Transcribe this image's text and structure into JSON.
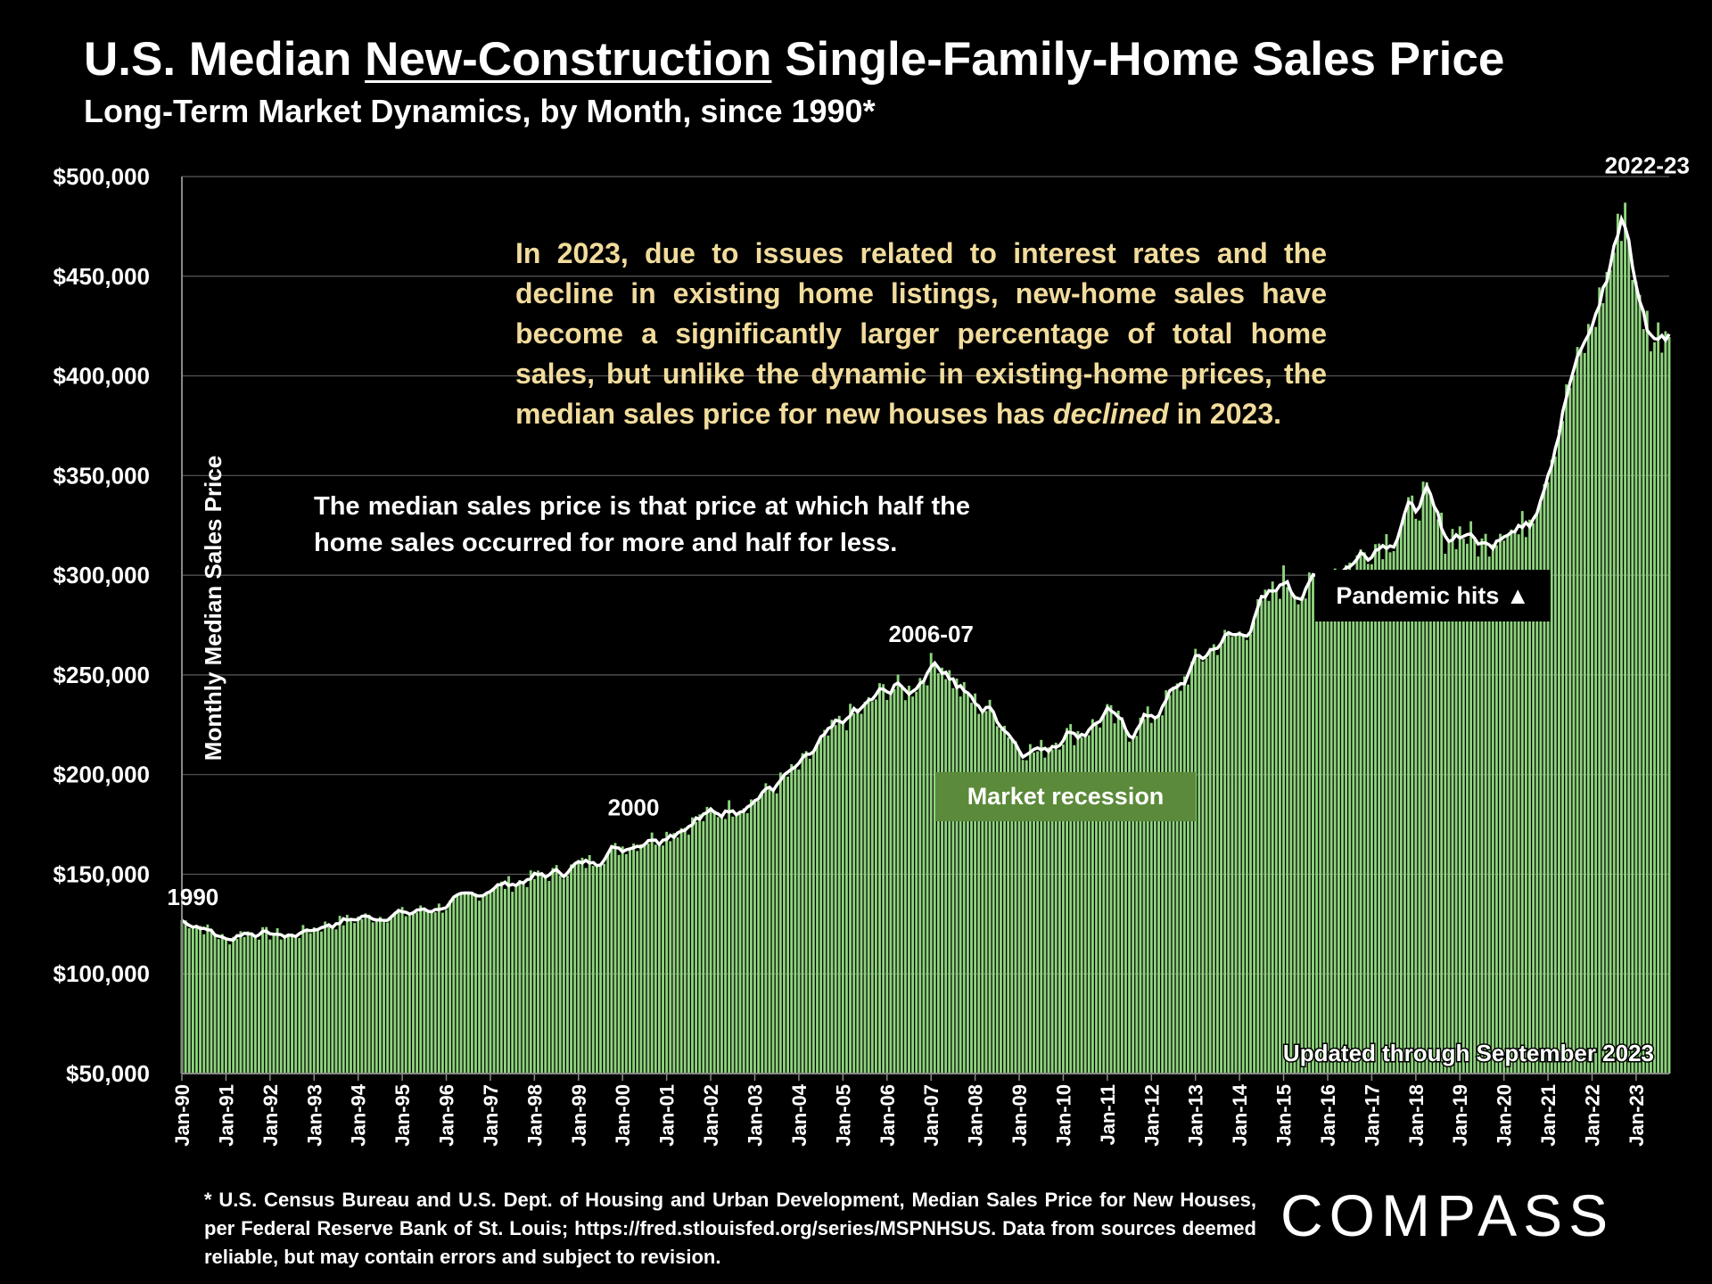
{
  "title": {
    "part1": "U.S. Median ",
    "part2": "New-Construction",
    "part3": " Single-Family-Home Sales Price"
  },
  "subtitle": "Long-Term Market Dynamics, by Month, since 1990*",
  "annotations": {
    "note": [
      "In 2023, due to issues related to interest rates and the decline in existing home listings, new-home sales have become a significantly larger percentage of total home sales, but unlike the dynamic in existing-home prices, the median sales price for new houses has ",
      "declined",
      " in 2023."
    ],
    "definition": "The median sales price is that price at which half the home sales occurred for more and half for less.",
    "recession": "Market recession",
    "pandemic": "Pandemic hits ▲",
    "updated": "Updated through September 2023"
  },
  "footnote": "* U.S. Census Bureau and U.S. Dept. of Housing and Urban Development, Median Sales Price for New Houses, per Federal Reserve Bank of St. Louis; https://fred.stlouisfed.org/series/MSPNHSUS. Data from sources deemed reliable, but may contain errors and subject to revision.",
  "logo": "COMPASS",
  "chart_data": {
    "type": "bar",
    "ylabel": "Monthly Median Sales Price",
    "xlabel": "",
    "ylim": [
      50000,
      500000
    ],
    "y_ticks": [
      "$50,000",
      "$100,000",
      "$150,000",
      "$200,000",
      "$250,000",
      "$300,000",
      "$350,000",
      "$400,000",
      "$450,000",
      "$500,000"
    ],
    "x_ticks": [
      "Jan-90",
      "Jan-91",
      "Jan-92",
      "Jan-93",
      "Jan-94",
      "Jan-95",
      "Jan-96",
      "Jan-97",
      "Jan-98",
      "Jan-99",
      "Jan-00",
      "Jan-01",
      "Jan-02",
      "Jan-03",
      "Jan-04",
      "Jan-05",
      "Jan-06",
      "Jan-07",
      "Jan-08",
      "Jan-09",
      "Jan-10",
      "Jan-11",
      "Jan-12",
      "Jan-13",
      "Jan-14",
      "Jan-15",
      "Jan-16",
      "Jan-17",
      "Jan-18",
      "Jan-19",
      "Jan-20",
      "Jan-21",
      "Jan-22",
      "Jan-23"
    ],
    "grid": true,
    "bar_color": "#8fd47e",
    "line_color": "#ffffff",
    "key_points": [
      {
        "x": "1990-01",
        "y": 127000
      },
      {
        "x": "1990-06",
        "y": 124000
      },
      {
        "x": "1991-01",
        "y": 117000
      },
      {
        "x": "1991-06",
        "y": 121000
      },
      {
        "x": "1992-01",
        "y": 120000
      },
      {
        "x": "1992-07",
        "y": 119000
      },
      {
        "x": "1993-01",
        "y": 123000
      },
      {
        "x": "1994-01",
        "y": 128000
      },
      {
        "x": "1995-01",
        "y": 130000
      },
      {
        "x": "1996-01",
        "y": 134000
      },
      {
        "x": "1997-01",
        "y": 143000
      },
      {
        "x": "1998-01",
        "y": 148000
      },
      {
        "x": "1999-01",
        "y": 154000
      },
      {
        "x": "2000-01",
        "y": 164000
      },
      {
        "x": "2001-01",
        "y": 170000
      },
      {
        "x": "2002-01",
        "y": 180000
      },
      {
        "x": "2003-01",
        "y": 187000
      },
      {
        "x": "2004-01",
        "y": 203000
      },
      {
        "x": "2004-07",
        "y": 215000
      },
      {
        "x": "2005-01",
        "y": 227000
      },
      {
        "x": "2005-07",
        "y": 233000
      },
      {
        "x": "2006-01",
        "y": 244000
      },
      {
        "x": "2006-07",
        "y": 242000
      },
      {
        "x": "2007-03",
        "y": 258000
      },
      {
        "x": "2007-09",
        "y": 242000
      },
      {
        "x": "2008-01",
        "y": 236000
      },
      {
        "x": "2008-07",
        "y": 230000
      },
      {
        "x": "2009-01",
        "y": 214000
      },
      {
        "x": "2009-06",
        "y": 211000
      },
      {
        "x": "2010-01",
        "y": 220000
      },
      {
        "x": "2010-07",
        "y": 222000
      },
      {
        "x": "2011-01",
        "y": 230000
      },
      {
        "x": "2011-07",
        "y": 222000
      },
      {
        "x": "2012-01",
        "y": 229000
      },
      {
        "x": "2012-07",
        "y": 240000
      },
      {
        "x": "2013-01",
        "y": 256000
      },
      {
        "x": "2013-07",
        "y": 266000
      },
      {
        "x": "2014-01",
        "y": 270000
      },
      {
        "x": "2014-07",
        "y": 283000
      },
      {
        "x": "2015-01",
        "y": 298000
      },
      {
        "x": "2015-07",
        "y": 291000
      },
      {
        "x": "2016-01",
        "y": 303000
      },
      {
        "x": "2016-07",
        "y": 305000
      },
      {
        "x": "2017-01",
        "y": 315000
      },
      {
        "x": "2017-07",
        "y": 320000
      },
      {
        "x": "2018-03",
        "y": 340000
      },
      {
        "x": "2018-09",
        "y": 320000
      },
      {
        "x": "2019-01",
        "y": 322000
      },
      {
        "x": "2019-07",
        "y": 315000
      },
      {
        "x": "2020-01",
        "y": 326000
      },
      {
        "x": "2020-05",
        "y": 320000
      },
      {
        "x": "2020-10",
        "y": 338000
      },
      {
        "x": "2021-01",
        "y": 355000
      },
      {
        "x": "2021-07",
        "y": 395000
      },
      {
        "x": "2022-01",
        "y": 425000
      },
      {
        "x": "2022-06",
        "y": 455000
      },
      {
        "x": "2022-10",
        "y": 487000
      },
      {
        "x": "2023-01",
        "y": 440000
      },
      {
        "x": "2023-06",
        "y": 418000
      },
      {
        "x": "2023-09",
        "y": 425000
      }
    ],
    "labels": [
      {
        "text": "1990",
        "x": "1990-03",
        "y": 130000
      },
      {
        "text": "2000",
        "x": "2000-03",
        "y": 175000
      },
      {
        "text": "2006-07",
        "x": "2007-00",
        "y": 262000
      },
      {
        "text": "2022-23",
        "x": "2023-03",
        "y": 497000
      }
    ]
  }
}
